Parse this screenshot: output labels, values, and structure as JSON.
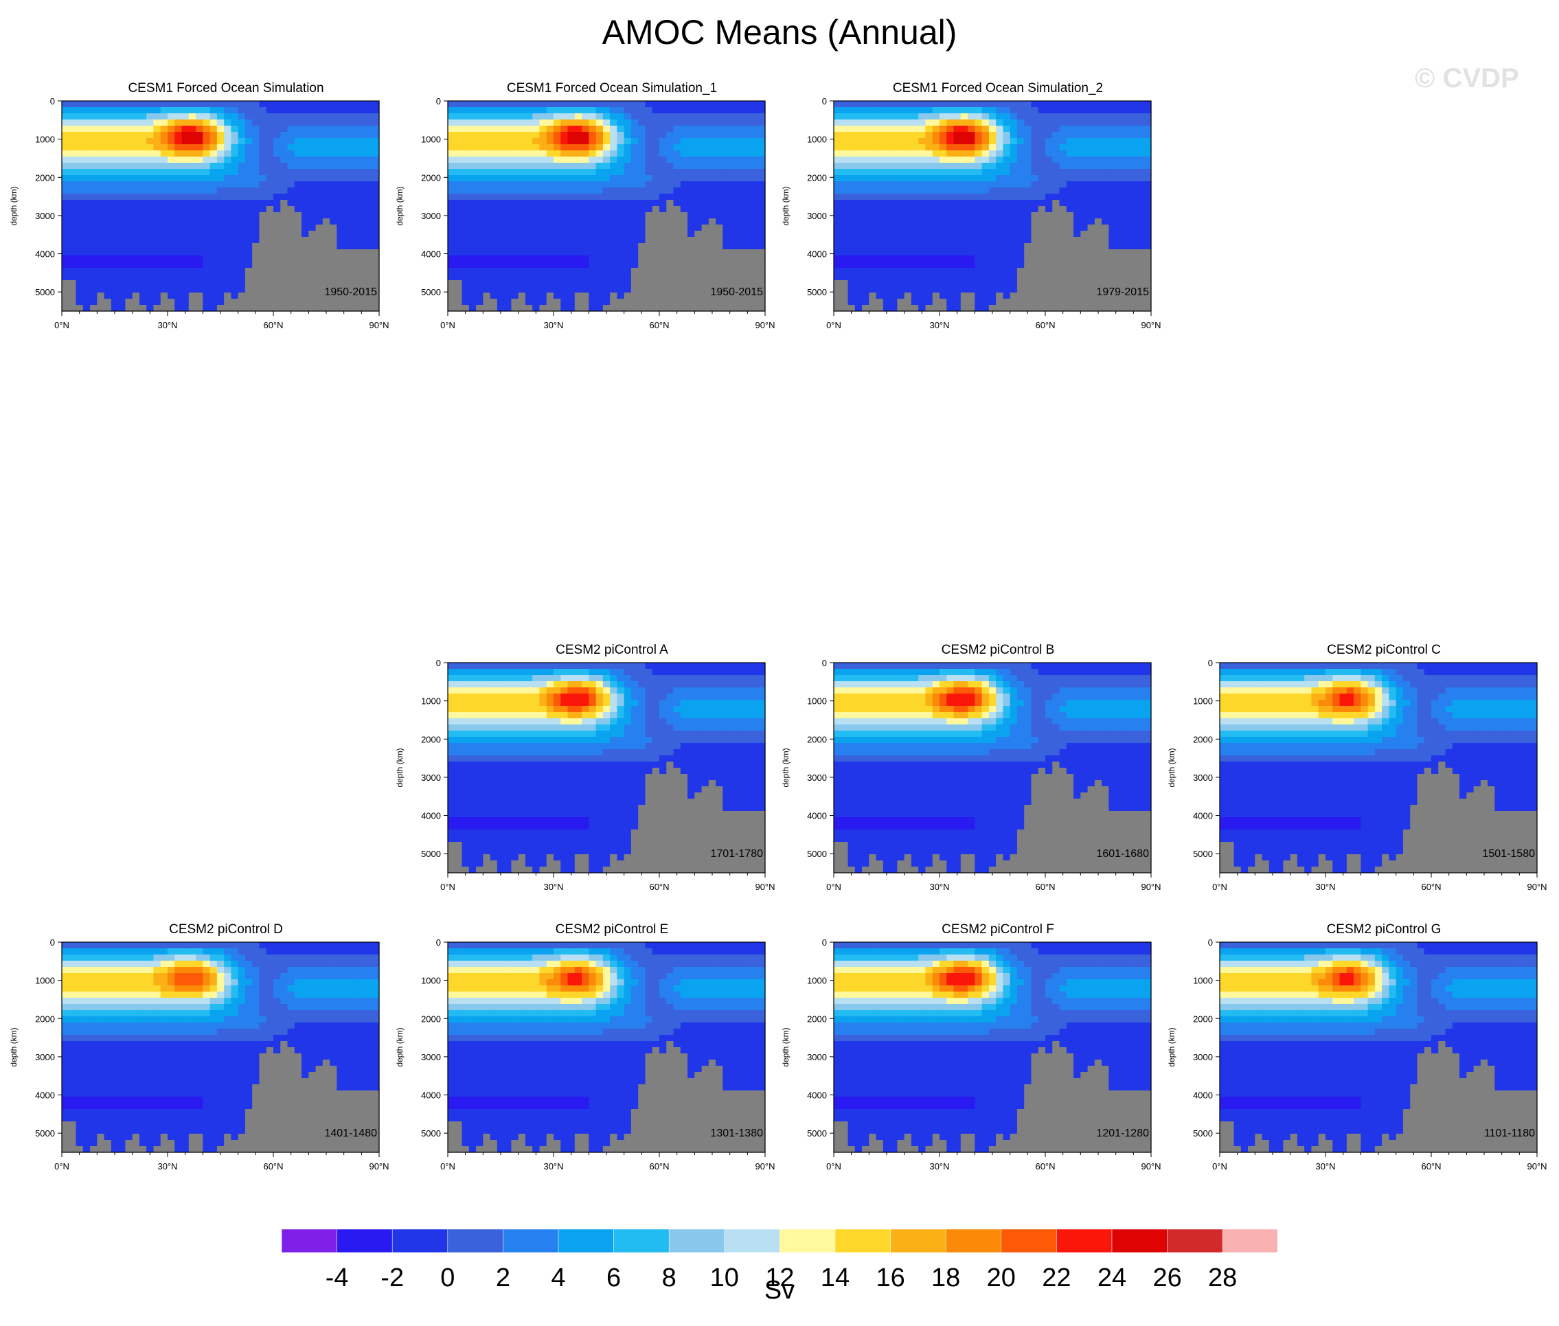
{
  "title": "AMOC Means (Annual)",
  "watermark": "© CVDP",
  "chart_data": {
    "type": "heatmap",
    "colorbar": {
      "unit": "Sv",
      "levels": [
        -4,
        -2,
        0,
        2,
        4,
        6,
        8,
        10,
        12,
        14,
        16,
        18,
        20,
        22,
        24,
        26,
        28
      ],
      "colors": [
        "#7f20e8",
        "#2a1af2",
        "#2036e8",
        "#3a62dc",
        "#2680f0",
        "#0aa3f0",
        "#22bcf2",
        "#88c8ec",
        "#b8e0f2",
        "#fff89c",
        "#fdd82a",
        "#fbb016",
        "#fb8a08",
        "#fc5a06",
        "#fb160a",
        "#de0404",
        "#d22a2a",
        "#fab1b1"
      ]
    },
    "panels": [
      {
        "title": "CESM1 Forced Ocean Simulation",
        "period": "1950-2015",
        "row": 0,
        "col": 0,
        "peak": 26.5
      },
      {
        "title": "CESM1 Forced Ocean Simulation_1",
        "period": "1950-2015",
        "row": 0,
        "col": 1,
        "peak": 26.5
      },
      {
        "title": "CESM1 Forced Ocean Simulation_2",
        "period": "1979-2015",
        "row": 0,
        "col": 2,
        "peak": 26.5
      },
      {
        "title": "CESM2 piControl A",
        "period": "1701-1780",
        "row": 1,
        "col": 1,
        "peak": 24.5
      },
      {
        "title": "CESM2 piControl B",
        "period": "1601-1680",
        "row": 1,
        "col": 2,
        "peak": 24.5
      },
      {
        "title": "CESM2 piControl C",
        "period": "1501-1580",
        "row": 1,
        "col": 3,
        "peak": 23.5
      },
      {
        "title": "CESM2 piControl D",
        "period": "1401-1480",
        "row": 2,
        "col": 0,
        "peak": 22.5
      },
      {
        "title": "CESM2 piControl E",
        "period": "1301-1380",
        "row": 2,
        "col": 1,
        "peak": 23.5
      },
      {
        "title": "CESM2 piControl F",
        "period": "1201-1280",
        "row": 2,
        "col": 2,
        "peak": 24.5
      },
      {
        "title": "CESM2 piControl G",
        "period": "1101-1180",
        "row": 2,
        "col": 3,
        "peak": 23.5
      }
    ],
    "x_axis": {
      "ticks": [
        "0°N",
        "30°N",
        "60°N",
        "90°N"
      ],
      "range": [
        0,
        90
      ]
    },
    "y_axis": {
      "label": "depth (km)",
      "ticks": [
        "0",
        "1000",
        "2000",
        "3000",
        "4000",
        "5000"
      ],
      "range": [
        0,
        5500
      ],
      "reversed": true
    },
    "land_color": "#808080"
  }
}
